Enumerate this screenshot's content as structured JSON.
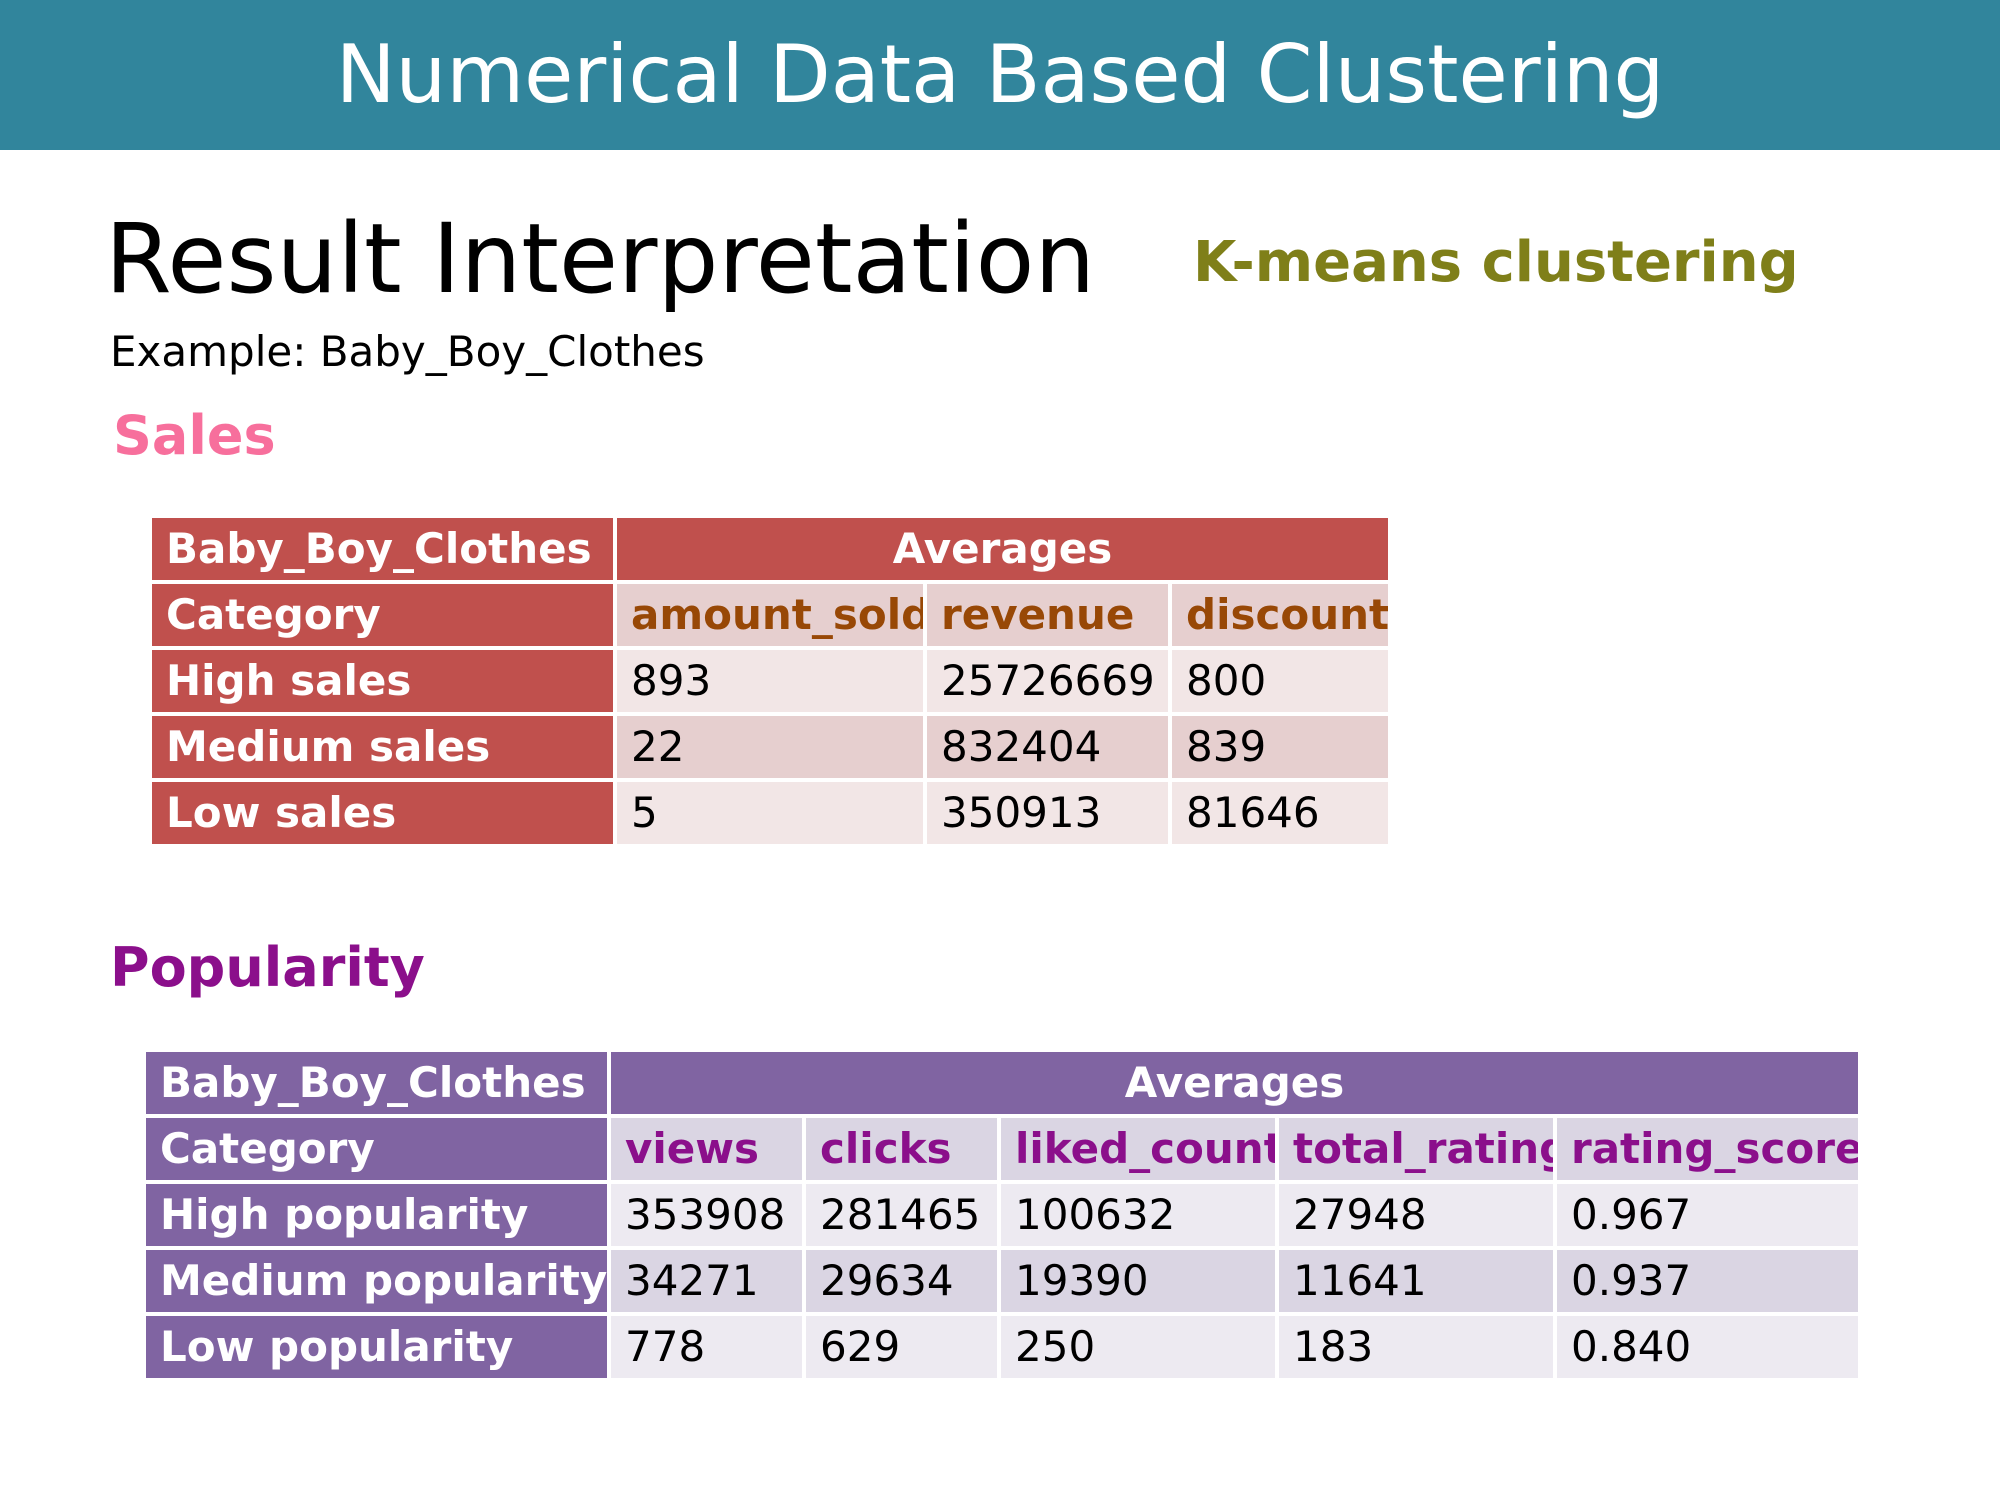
{
  "header": {
    "title": "Numerical Data Based Clustering"
  },
  "slide": {
    "heading": "Result Interpretation",
    "method": "K-means clustering",
    "example": "Example: Baby_Boy_Clothes",
    "accent_colors": {
      "banner": "#31859C",
      "method": "#7F7F19",
      "sales": "#F76F9C",
      "popularity": "#8B0F8B"
    }
  },
  "sales": {
    "title": "Sales",
    "table": {
      "corner": "Baby_Boy_Clothes",
      "group_header": "Averages",
      "category_label": "Category",
      "columns": [
        "amount_sold",
        "revenue",
        "discount"
      ],
      "rows": [
        {
          "label": "High sales",
          "values": [
            "893",
            "25726669",
            "800"
          ]
        },
        {
          "label": "Medium sales",
          "values": [
            "22",
            "832404",
            "839"
          ]
        },
        {
          "label": "Low sales",
          "values": [
            "5",
            "350913",
            "81646"
          ]
        }
      ]
    }
  },
  "popularity": {
    "title": "Popularity",
    "table": {
      "corner": "Baby_Boy_Clothes",
      "group_header": "Averages",
      "category_label": "Category",
      "columns": [
        "views",
        "clicks",
        "liked_count",
        "total_rating",
        "rating_score"
      ],
      "rows": [
        {
          "label": "High popularity",
          "values": [
            "353908",
            "281465",
            "100632",
            "27948",
            "0.967"
          ]
        },
        {
          "label": "Medium popularity",
          "values": [
            "34271",
            "29634",
            "19390",
            "11641",
            "0.937"
          ]
        },
        {
          "label": "Low popularity",
          "values": [
            "778",
            "629",
            "250",
            "183",
            "0.840"
          ]
        }
      ]
    }
  }
}
